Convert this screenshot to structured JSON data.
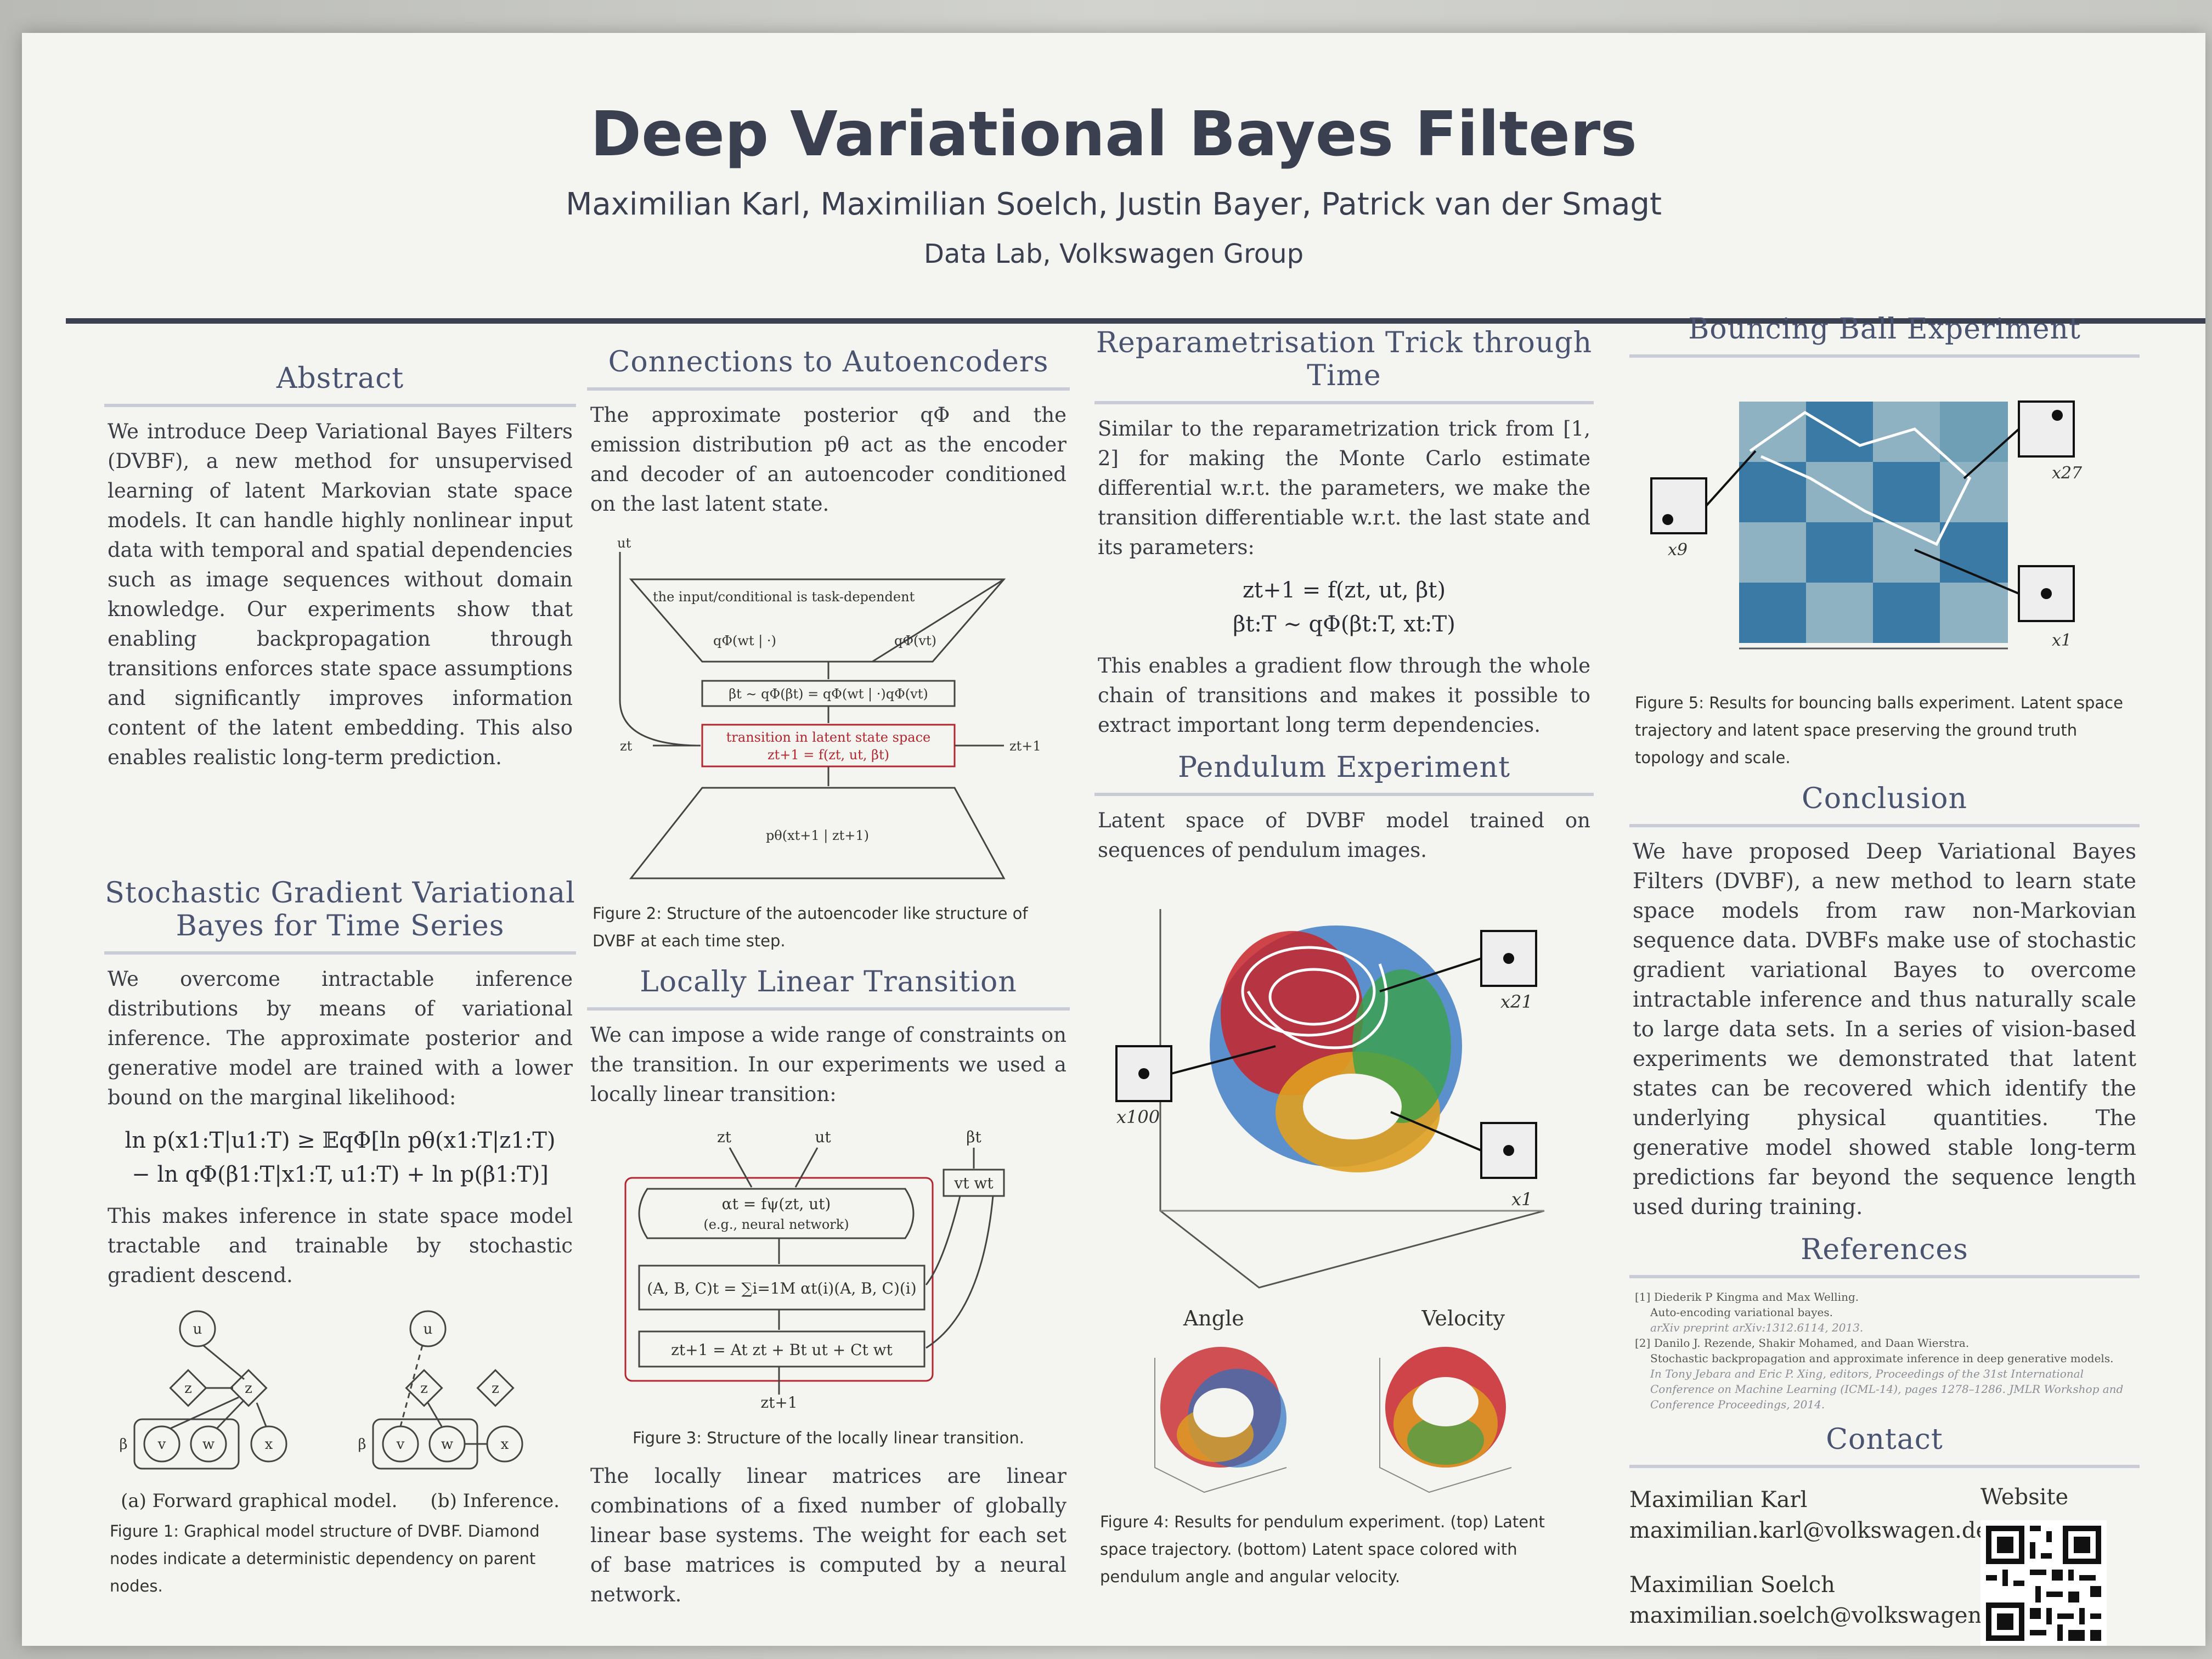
{
  "header": {
    "title": "Deep Variational Bayes Filters",
    "authors": "Maximilian Karl, Maximilian Soelch, Justin Bayer, Patrick van der Smagt",
    "affiliation": "Data Lab, Volkswagen Group"
  },
  "abstract": {
    "heading": "Abstract",
    "text": "We introduce Deep Variational Bayes Filters (DVBF), a new method for unsupervised learning of latent Markovian state space models. It can handle highly nonlinear input data with temporal and spatial dependencies such as image sequences without domain knowledge. Our experiments show that enabling backpropagation through transitions enforces state space assumptions and significantly improves information content of the latent embedding. This also enables realistic long-term prediction."
  },
  "sgvb": {
    "heading": "Stochastic Gradient Variational Bayes for Time Series",
    "text1": "We overcome intractable inference distributions by means of variational inference. The approximate posterior and generative model are trained with a lower bound on the marginal likelihood:",
    "eq1": "ln p(x1:T|u1:T) ≥ 𝔼qΦ[ln pθ(x1:T|z1:T)",
    "eq2": "− ln qΦ(β1:T|x1:T, u1:T) + ln p(β1:T)]",
    "text2": "This makes inference in state space model tractable and trainable by stochastic gradient descend.",
    "sub_a": "(a) Forward graphical model.",
    "sub_b": "(b) Inference.",
    "caption": "Figure 1: Graphical model structure of DVBF. Diamond nodes indicate a deterministic dependency on parent nodes.",
    "nodes": {
      "u": "u",
      "z": "z",
      "zn": "z",
      "v": "v",
      "w": "w",
      "x": "x",
      "beta": "β"
    }
  },
  "autoencoders": {
    "heading": "Connections to Autoencoders",
    "text": "The approximate posterior qΦ and the emission distribution pθ act as the encoder and decoder of an autoencoder conditioned on the last latent state.",
    "fig": {
      "ut": "ut",
      "input_note": "the input/conditional is task-dependent",
      "qw": "qΦ(wt | ·)",
      "qv": "qΦ(vt)",
      "beta_eq": "βt ∼ qΦ(βt) = qΦ(wt | ·)qΦ(vt)",
      "trans_label": "transition in latent state space",
      "trans_eq": "zt+1 = f(zt, ut, βt)",
      "zt": "zt",
      "zt1": "zt+1",
      "decoder": "pθ(xt+1 | zt+1)"
    },
    "caption": "Figure 2: Structure of the autoencoder like structure of DVBF at each time step."
  },
  "locally_linear": {
    "heading": "Locally Linear Transition",
    "text1": "We can impose a wide range of constraints on the transition. In our experiments we used a locally linear transition:",
    "fig": {
      "zt": "zt",
      "ut": "ut",
      "betat": "βt",
      "vw": "vt wt",
      "alpha1": "αt = fψ(zt, ut)",
      "alpha2": "(e.g., neural network)",
      "abc": "(A, B, C)t = ∑i=1M αt(i)(A, B, C)(i)",
      "znext": "zt+1 = At zt + Bt ut + Ct wt",
      "zout": "zt+1"
    },
    "caption": "Figure 3: Structure of the locally linear transition.",
    "text2": "The locally linear matrices are linear combinations of a fixed number of globally linear base systems. The weight for each set of base matrices is computed by a neural network."
  },
  "reparam": {
    "heading": "Reparametrisation Trick through Time",
    "text1": "Similar to the reparametrization trick from [1, 2] for making the Monte Carlo estimate differential w.r.t. the parameters, we make the transition differentiable w.r.t. the last state and its parameters:",
    "eq1": "zt+1 = f(zt, ut, βt)",
    "eq2": "βt:T ∼ qΦ(βt:T, xt:T)",
    "text2": "This enables a gradient flow through the whole chain of transitions and makes it possible to extract important long term dependencies."
  },
  "pendulum": {
    "heading": "Pendulum Experiment",
    "text": "Latent space of DVBF model trained on sequences of pendulum images.",
    "labels": {
      "x21": "x21",
      "x100": "x100",
      "x1": "x1"
    },
    "angle": "Angle",
    "velocity": "Velocity",
    "caption": "Figure 4: Results for pendulum experiment. (top) Latent space trajectory. (bottom) Latent space colored with pendulum angle and angular velocity."
  },
  "bouncing": {
    "heading": "Bouncing Ball Experiment",
    "labels": {
      "x27": "x27",
      "x9": "x9",
      "x1": "x1"
    },
    "caption": "Figure 5: Results for bouncing balls experiment. Latent space trajectory and latent space preserving the ground truth topology and scale."
  },
  "conclusion": {
    "heading": "Conclusion",
    "text": "We have proposed Deep Variational Bayes Filters (DVBF), a new method to learn state space models from raw non-Markovian sequence data. DVBFs make use of stochastic gradient variational Bayes to overcome intractable inference and thus naturally scale to large data sets. In a series of vision-based experiments we demonstrated that latent states can be recovered which identify the underlying physical quantities. The generative model showed stable long-term predictions far beyond the sequence length used during training."
  },
  "references": {
    "heading": "References",
    "r1a": "[1] Diederik P Kingma and Max Welling.",
    "r1b": "Auto-encoding variational bayes.",
    "r1c": "arXiv preprint arXiv:1312.6114, 2013.",
    "r2a": "[2] Danilo J. Rezende, Shakir Mohamed, and Daan Wierstra.",
    "r2b": "Stochastic backpropagation and approximate inference in deep generative models.",
    "r2c": "In Tony Jebara and Eric P. Xing, editors, Proceedings of the 31st International Conference on Machine Learning (ICML-14), pages 1278–1286. JMLR Workshop and Conference Proceedings, 2014."
  },
  "contact": {
    "heading": "Contact",
    "name1": "Maximilian Karl",
    "email1": "maximilian.karl@volkswagen.de",
    "name2": "Maximilian Soelch",
    "email2": "maximilian.soelch@volkswagen.de",
    "website": "Website"
  },
  "colors": {
    "accent": "#4a5370",
    "rule": "#3c4152",
    "transition_red": "#b3262e"
  }
}
